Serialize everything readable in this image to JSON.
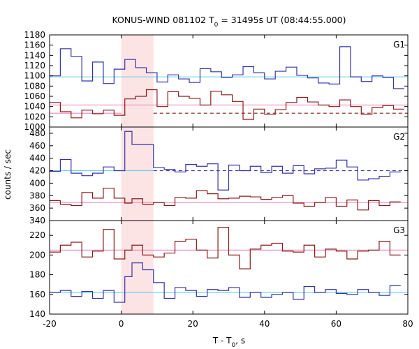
{
  "chart_data": {
    "type": "line",
    "title": "KONUS-WIND 081102 T0 = 31495s UT (08:44:55.000)",
    "title_parts": {
      "pre": "KONUS-WIND 081102 T",
      "sub": "0",
      "post": " = 31495s UT (08:44:55.000)"
    },
    "xlabel": "T - T0, s",
    "xlabel_parts": {
      "pre": "T - T",
      "sub": "0",
      "post": ", s"
    },
    "ylabel": "counts / sec",
    "xlim": [
      -20,
      80
    ],
    "x_ticks": [
      -20,
      0,
      20,
      40,
      60,
      80
    ],
    "highlight_interval": [
      0,
      9
    ],
    "colors": {
      "blue": "#3333aa",
      "red": "#8b1a1a",
      "cyan_fit": "#66ccee",
      "pink_fit": "#ee88bb",
      "highlight": "#fde4e4",
      "frame": "#000000"
    },
    "panels": [
      {
        "label": "G1",
        "ylim": [
          1000,
          1180
        ],
        "y_ticks": [
          1000,
          1020,
          1040,
          1060,
          1080,
          1100,
          1120,
          1140,
          1160,
          1180
        ],
        "series": [
          {
            "color": "blue",
            "edges": [
              -20,
              -17,
              -14,
              -11,
              -8,
              -5,
              -2,
              1,
              4,
              7,
              10,
              13,
              16,
              19,
              22,
              25,
              28,
              31,
              34,
              37,
              40,
              43,
              46,
              49,
              52,
              55,
              58,
              61,
              64,
              67,
              70,
              73,
              76,
              79
            ],
            "values": [
              1100,
              1153,
              1138,
              1090,
              1127,
              1085,
              1113,
              1132,
              1116,
              1106,
              1088,
              1102,
              1094,
              1087,
              1114,
              1108,
              1097,
              1102,
              1118,
              1106,
              1094,
              1109,
              1117,
              1101,
              1096,
              1086,
              1084,
              1157,
              1098,
              1089,
              1100,
              1097,
              1075
            ]
          },
          {
            "color": "red",
            "edges": [
              -20,
              -17,
              -14,
              -11,
              -8,
              -5,
              -2,
              1,
              4,
              7,
              10,
              13,
              16,
              19,
              22,
              25,
              28,
              31,
              34,
              37,
              40,
              43,
              46,
              49,
              52,
              55,
              58,
              61,
              64,
              67,
              70,
              73,
              76,
              79
            ],
            "values": [
              1048,
              1030,
              1018,
              1033,
              1026,
              1033,
              1023,
              1055,
              1060,
              1073,
              1040,
              1069,
              1060,
              1056,
              1043,
              1070,
              1063,
              1050,
              1015,
              1035,
              1025,
              1034,
              1048,
              1058,
              1049,
              1043,
              1040,
              1053,
              1040,
              1025,
              1038,
              1042,
              1035
            ]
          }
        ],
        "fits": [
          {
            "color": "cyan_fit",
            "y": 1098,
            "solid_range": [
              -20,
              80
            ]
          },
          {
            "color": "pink_fit",
            "y": 1043,
            "solid_range": [
              -20,
              80
            ]
          },
          {
            "color": "pink_fit",
            "y": 1027,
            "solid_range": [
              -20,
              0
            ],
            "dashed_range": null
          },
          {
            "color": "red",
            "y": 1027,
            "solid_range": null,
            "dashed_range": [
              9,
              80
            ]
          }
        ]
      },
      {
        "label": "G2",
        "ylim": [
          340,
          490
        ],
        "y_ticks": [
          340,
          360,
          380,
          400,
          420,
          440,
          460,
          480
        ],
        "series": [
          {
            "color": "blue",
            "edges": [
              -20,
              -17,
              -14,
              -11,
              -8,
              -5,
              -2,
              1,
              3,
              6,
              9,
              12,
              15,
              18,
              21,
              24,
              27,
              30,
              33,
              36,
              39,
              42,
              45,
              48,
              51,
              54,
              57,
              60,
              63,
              66,
              69,
              72,
              75,
              78
            ],
            "values": [
              419,
              438,
              416,
              412,
              416,
              426,
              420,
              483,
              462,
              462,
              425,
              422,
              418,
              430,
              427,
              431,
              389,
              429,
              420,
              427,
              417,
              427,
              416,
              428,
              415,
              423,
              424,
              437,
              426,
              405,
              407,
              411,
              418
            ]
          },
          {
            "color": "red",
            "edges": [
              -20,
              -17,
              -14,
              -11,
              -8,
              -5,
              -2,
              1,
              3,
              6,
              9,
              12,
              15,
              18,
              21,
              24,
              27,
              30,
              33,
              36,
              39,
              42,
              45,
              48,
              51,
              54,
              57,
              60,
              63,
              66,
              69,
              72,
              75,
              78
            ],
            "values": [
              372,
              366,
              364,
              385,
              376,
              392,
              376,
              368,
              375,
              366,
              369,
              364,
              377,
              376,
              388,
              383,
              375,
              376,
              379,
              378,
              374,
              377,
              380,
              368,
              363,
              369,
              377,
              363,
              373,
              357,
              372,
              364,
              370
            ]
          }
        ],
        "fits": [
          {
            "color": "cyan_fit",
            "y": 420,
            "solid_range": [
              -20,
              9
            ]
          },
          {
            "color": "blue",
            "y": 420,
            "solid_range": null,
            "dashed_range": [
              9,
              80
            ]
          },
          {
            "color": "pink_fit",
            "y": 369,
            "solid_range": [
              -20,
              80
            ]
          }
        ]
      },
      {
        "label": "G3",
        "ylim": [
          140,
          235
        ],
        "y_ticks": [
          140,
          160,
          180,
          200,
          220
        ],
        "series": [
          {
            "color": "blue",
            "edges": [
              -20,
              -17,
              -14,
              -11,
              -8,
              -5,
              -2,
              1,
              3,
              6,
              9,
              12,
              15,
              18,
              21,
              24,
              27,
              30,
              33,
              36,
              39,
              42,
              45,
              48,
              51,
              54,
              57,
              60,
              63,
              66,
              69,
              72,
              75,
              78
            ],
            "values": [
              162,
              164,
              158,
              163,
              156,
              164,
              152,
              178,
              192,
              185,
              172,
              156,
              167,
              164,
              158,
              165,
              164,
              167,
              157,
              162,
              157,
              160,
              162,
              155,
              168,
              162,
              165,
              161,
              160,
              165,
              162,
              159,
              169
            ]
          },
          {
            "color": "red",
            "edges": [
              -20,
              -17,
              -14,
              -11,
              -8,
              -5,
              -2,
              1,
              3,
              6,
              9,
              12,
              15,
              18,
              21,
              24,
              27,
              30,
              33,
              36,
              39,
              42,
              45,
              48,
              51,
              54,
              57,
              60,
              63,
              66,
              69,
              72,
              75,
              78
            ],
            "values": [
              203,
              210,
              213,
              198,
              204,
              226,
              196,
              205,
              210,
              200,
              198,
              202,
              214,
              216,
              205,
              197,
              228,
              200,
              186,
              206,
              210,
              212,
              204,
              203,
              210,
              198,
              206,
              204,
              196,
              204,
              205,
              214,
              200
            ]
          }
        ],
        "fits": [
          {
            "color": "pink_fit",
            "y": 205,
            "solid_range": [
              -20,
              80
            ]
          },
          {
            "color": "cyan_fit",
            "y": 162,
            "solid_range": [
              -20,
              80
            ]
          }
        ]
      }
    ]
  }
}
